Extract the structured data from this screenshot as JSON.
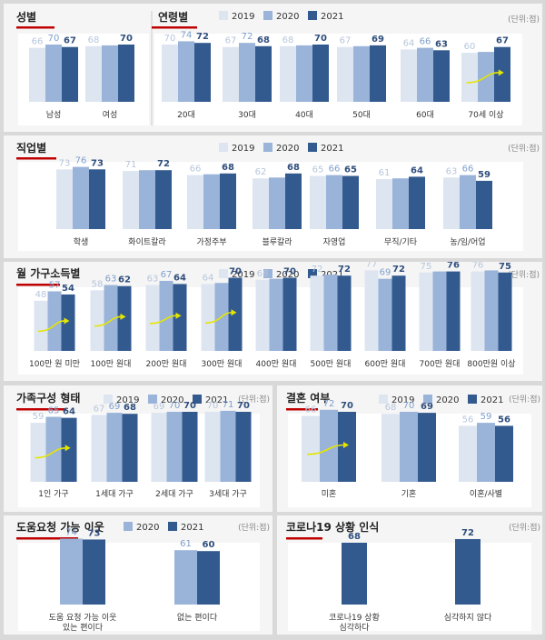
{
  "colors": {
    "y2019": "#dde5f1",
    "y2020": "#9ab3d8",
    "y2021": "#335a8f",
    "accent": "#c00000",
    "valLight": "#b7c6dc",
    "valMid": "#7f9fcc",
    "valDark": "#2f4e7c",
    "label": "#333333",
    "title": "#222222",
    "note": "#888888",
    "arrow": "#e5e500"
  },
  "unit_label": "(단위:점)",
  "legend": {
    "y2019": "2019",
    "y2020": "2020",
    "y2021": "2021"
  },
  "chart_data": [
    {
      "id": "gender",
      "type": "bar",
      "title": "성별",
      "series_keys": [
        "y2019",
        "y2020",
        "y2021"
      ],
      "categories": [
        "남성",
        "여성"
      ],
      "values": [
        [
          66,
          70,
          67
        ],
        [
          68,
          null,
          70
        ]
      ],
      "arrows": []
    },
    {
      "id": "age",
      "type": "bar",
      "title": "연령별",
      "legend_keys": [
        "y2019",
        "y2020",
        "y2021"
      ],
      "series_keys": [
        "y2019",
        "y2020",
        "y2021"
      ],
      "categories": [
        "20대",
        "30대",
        "40대",
        "50대",
        "60대",
        "70세 이상"
      ],
      "values": [
        [
          70,
          74,
          72
        ],
        [
          67,
          72,
          68
        ],
        [
          68,
          null,
          70
        ],
        [
          67,
          null,
          69
        ],
        [
          64,
          66,
          63
        ],
        [
          60,
          null,
          67
        ]
      ],
      "arrows": [
        5
      ]
    },
    {
      "id": "job",
      "type": "bar",
      "title": "직업별",
      "legend_keys": [
        "y2019",
        "y2020",
        "y2021"
      ],
      "series_keys": [
        "y2019",
        "y2020",
        "y2021"
      ],
      "categories": [
        "학생",
        "화이트칼라",
        "가정주부",
        "블루칼라",
        "자영업",
        "무직/기타",
        "농/임/어업"
      ],
      "values": [
        [
          73,
          76,
          73
        ],
        [
          71,
          null,
          72
        ],
        [
          66,
          null,
          68
        ],
        [
          62,
          null,
          68
        ],
        [
          65,
          66,
          65
        ],
        [
          61,
          null,
          64
        ],
        [
          63,
          66,
          59
        ]
      ],
      "arrows": []
    },
    {
      "id": "income",
      "type": "bar",
      "title": "월 가구소득별",
      "legend_keys": [
        "y2019",
        "y2020",
        "y2021"
      ],
      "series_keys": [
        "y2019",
        "y2020",
        "y2021"
      ],
      "categories": [
        "100만 원 미만",
        "100만 원대",
        "200만 원대",
        "300만 원대",
        "400만 원대",
        "500만 원대",
        "600만 원대",
        "700만 원대",
        "800만원 이상"
      ],
      "values": [
        [
          48,
          57,
          54
        ],
        [
          58,
          63,
          62
        ],
        [
          63,
          67,
          64
        ],
        [
          64,
          null,
          70
        ],
        [
          68,
          null,
          70
        ],
        [
          72,
          null,
          72
        ],
        [
          77,
          69,
          72
        ],
        [
          75,
          null,
          76
        ],
        [
          76,
          null,
          75
        ]
      ],
      "arrows": [
        0,
        1,
        2,
        3
      ]
    },
    {
      "id": "family",
      "type": "bar",
      "title": "가족구성 형태",
      "legend_keys": [
        "y2019",
        "y2020",
        "y2021"
      ],
      "series_keys": [
        "y2019",
        "y2020",
        "y2021"
      ],
      "categories": [
        "1인 가구",
        "1세대 가구",
        "2세대 가구",
        "3세대 가구"
      ],
      "values": [
        [
          59,
          65,
          64
        ],
        [
          67,
          69,
          68
        ],
        [
          69,
          70,
          70
        ],
        [
          70,
          71,
          70
        ]
      ],
      "arrows": [
        0
      ]
    },
    {
      "id": "marriage",
      "type": "bar",
      "title": "결혼 여부",
      "legend_keys": [
        "y2019",
        "y2020",
        "y2021"
      ],
      "series_keys": [
        "y2019",
        "y2020",
        "y2021"
      ],
      "categories": [
        "미혼",
        "기혼",
        "이혼/사별"
      ],
      "values": [
        [
          66,
          72,
          70
        ],
        [
          68,
          70,
          69
        ],
        [
          56,
          59,
          56
        ]
      ],
      "arrows": [
        0
      ]
    },
    {
      "id": "neighbor",
      "type": "bar",
      "title": "도움요청 가능 이웃",
      "legend_keys": [
        "y2020",
        "y2021"
      ],
      "series_keys": [
        "y2020",
        "y2021"
      ],
      "categories": [
        "도움 요청 가능 이웃\n있는 편이다",
        "없는 편이다"
      ],
      "values": [
        [
          74,
          73
        ],
        [
          61,
          60
        ]
      ],
      "arrows": []
    },
    {
      "id": "covid",
      "type": "bar",
      "title": "코로나19 상황 인식",
      "legend_keys": [],
      "series_keys": [
        "y2021"
      ],
      "categories": [
        "코로나19 상황\n심각하다",
        "심각하지 않다"
      ],
      "values": [
        [
          68
        ],
        [
          72
        ]
      ],
      "arrows": []
    }
  ]
}
